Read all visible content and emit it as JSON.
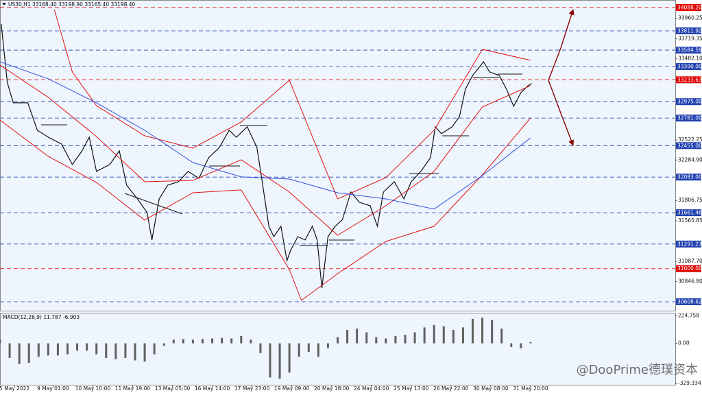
{
  "chart_data": [
    {
      "type": "line",
      "title": "US30,H1  33168.40 33198.90 33165.40 33198.40",
      "xlim": [
        0,
        560
      ],
      "ylim": [
        30503,
        34177
      ],
      "xticks": [
        {
          "value": 12,
          "label": "5 May 2022"
        },
        {
          "value": 44,
          "label": "9 May 01:00"
        },
        {
          "value": 77,
          "label": "10 May 10:00"
        },
        {
          "value": 110,
          "label": "11 May 19:00"
        },
        {
          "value": 143,
          "label": "13 May 05:00"
        },
        {
          "value": 176,
          "label": "16 May 14:00"
        },
        {
          "value": 209,
          "label": "17 May 23:00"
        },
        {
          "value": 242,
          "label": "19 May 09:00"
        },
        {
          "value": 275,
          "label": "20 May 18:00"
        },
        {
          "value": 308,
          "label": "24 May 04:00"
        },
        {
          "value": 341,
          "label": "25 May 13:00"
        },
        {
          "value": 374,
          "label": "26 May 22:00"
        },
        {
          "value": 407,
          "label": "30 May 08:00"
        },
        {
          "value": 440,
          "label": "31 May 20:00"
        }
      ],
      "yticks": [
        33960.25,
        33719.35,
        {
          "value": 33482.1,
          "label": "33482.10"
        },
        32522.25,
        {
          "value": 32284.9,
          "label": "32284.90"
        },
        31806.75,
        31565.85,
        {
          "value": 31087.7,
          "label": "31087.70"
        },
        {
          "value": 30846.8,
          "label": "30846.80"
        }
      ],
      "levels": [
        {
          "value": 34088.2,
          "label": "34088.20",
          "color": "#e00000"
        },
        {
          "value": 33811.92,
          "label": "33811.92",
          "color": "#2040b0"
        },
        {
          "value": 33584.59,
          "label": "33584.59",
          "color": "#2040b0"
        },
        {
          "value": 33390,
          "label": "33390.00",
          "color": "#2040b0"
        },
        {
          "value": 33233.63,
          "label": "33233.63",
          "color": "#e00000"
        },
        {
          "value": 32975,
          "label": "32975.00",
          "color": "#2040b0"
        },
        {
          "value": 32781,
          "label": "32781.00",
          "color": "#2040b0"
        },
        {
          "value": 32455,
          "label": "32455.00",
          "color": "#2040b0"
        },
        {
          "value": 32083,
          "label": "32083.00",
          "color": "#2040b0"
        },
        {
          "value": 31661.46,
          "label": "31661.46",
          "color": "#2040b0"
        },
        {
          "value": 31291.23,
          "label": "31291.23",
          "color": "#2040b0"
        },
        {
          "value": 31000,
          "label": "31000.00",
          "color": "#e00000"
        },
        {
          "value": 30608.62,
          "label": "30608.62",
          "color": "#2040b0"
        }
      ],
      "series": [
        {
          "color": "#111111",
          "x": [
            1,
            6,
            11,
            23,
            31,
            40,
            51,
            60,
            68,
            74,
            80,
            91,
            99,
            105,
            114,
            122,
            126,
            132,
            139,
            148,
            156,
            165,
            173,
            182,
            190,
            196,
            205,
            213,
            217,
            223,
            227,
            233,
            238,
            241,
            247,
            253,
            259,
            263,
            267,
            272,
            278,
            284,
            291,
            298,
            307,
            313,
            318,
            327,
            335,
            341,
            349,
            357,
            361,
            366,
            375,
            381,
            386,
            392,
            401,
            406,
            414,
            420,
            426,
            432,
            438,
            441
          ],
          "values": [
            33894,
            33204,
            32961,
            32961,
            32636,
            32555,
            32474,
            32231,
            32393,
            32555,
            32150,
            32231,
            32393,
            31987,
            31825,
            31663,
            31339,
            31825,
            31987,
            32028,
            32150,
            32069,
            32312,
            32434,
            32636,
            32555,
            32677,
            32434,
            32069,
            31501,
            31379,
            31501,
            31095,
            31217,
            31379,
            31339,
            31501,
            31339,
            30771,
            31379,
            31501,
            31582,
            31906,
            31785,
            31744,
            31501,
            31906,
            32028,
            31825,
            32028,
            32150,
            32312,
            32677,
            32596,
            32677,
            32799,
            33123,
            33285,
            33447,
            33326,
            33285,
            33123,
            32920,
            33082,
            33164,
            33188
          ]
        },
        {
          "color": "#e01010",
          "x": [
            45,
            60,
            80,
            120,
            160,
            200,
            240,
            280,
            320,
            360,
            400,
            440
          ],
          "values": [
            34064,
            33326,
            32928,
            32571,
            32425,
            32734,
            33228,
            31825,
            32077,
            32636,
            33593,
            33464
          ]
        },
        {
          "color": "#e01010",
          "x": [
            0,
            40,
            80,
            120,
            160,
            200,
            240,
            280,
            320,
            360,
            400,
            440
          ],
          "values": [
            33407,
            33026,
            32563,
            32028,
            32044,
            32288,
            31906,
            31395,
            31744,
            32150,
            32912,
            33164
          ]
        },
        {
          "color": "#e01010",
          "x": [
            0,
            40,
            80,
            120,
            160,
            200,
            240,
            250,
            280,
            320,
            360,
            400,
            440
          ],
          "values": [
            32758,
            32328,
            32020,
            31574,
            31898,
            31931,
            30990,
            30625,
            30941,
            31322,
            31501,
            32109,
            32782
          ]
        },
        {
          "color": "#3050e0",
          "x": [
            0,
            40,
            80,
            120,
            160,
            200,
            240,
            280,
            320,
            360,
            400,
            440
          ],
          "values": [
            33447,
            33245,
            32961,
            32636,
            32255,
            32085,
            32060,
            31898,
            31825,
            31704,
            32101,
            32547
          ]
        }
      ],
      "watermark": "@DooPrime德璞资本"
    },
    {
      "type": "bar",
      "title": "MACD(12,26,9) 11.787 -6.903",
      "color": "#606060",
      "xlim": [
        0,
        560
      ],
      "ylim": [
        -345,
        250
      ],
      "yticks": [
        {
          "value": 224.758,
          "label": "224.758"
        },
        {
          "value": 0,
          "label": "0.00"
        },
        -329.334
      ],
      "x": [
        0,
        8,
        16,
        24,
        32,
        40,
        48,
        56,
        64,
        72,
        80,
        88,
        96,
        104,
        112,
        120,
        128,
        136,
        144,
        152,
        160,
        168,
        176,
        184,
        192,
        200,
        208,
        216,
        224,
        232,
        240,
        248,
        256,
        264,
        272,
        280,
        288,
        296,
        304,
        312,
        320,
        328,
        336,
        344,
        352,
        360,
        368,
        376,
        384,
        392,
        400,
        408,
        416,
        424,
        432,
        440
      ],
      "values": [
        30,
        -120,
        -170,
        -160,
        -110,
        -100,
        -100,
        -90,
        -60,
        -60,
        -90,
        -120,
        -130,
        -120,
        -140,
        -150,
        -90,
        -20,
        30,
        35,
        30,
        35,
        40,
        45,
        40,
        60,
        30,
        -80,
        -280,
        -290,
        -240,
        -110,
        -70,
        -110,
        -40,
        50,
        110,
        120,
        90,
        50,
        40,
        60,
        70,
        90,
        130,
        150,
        140,
        110,
        130,
        200,
        210,
        190,
        120,
        -30,
        -40,
        10
      ]
    }
  ]
}
